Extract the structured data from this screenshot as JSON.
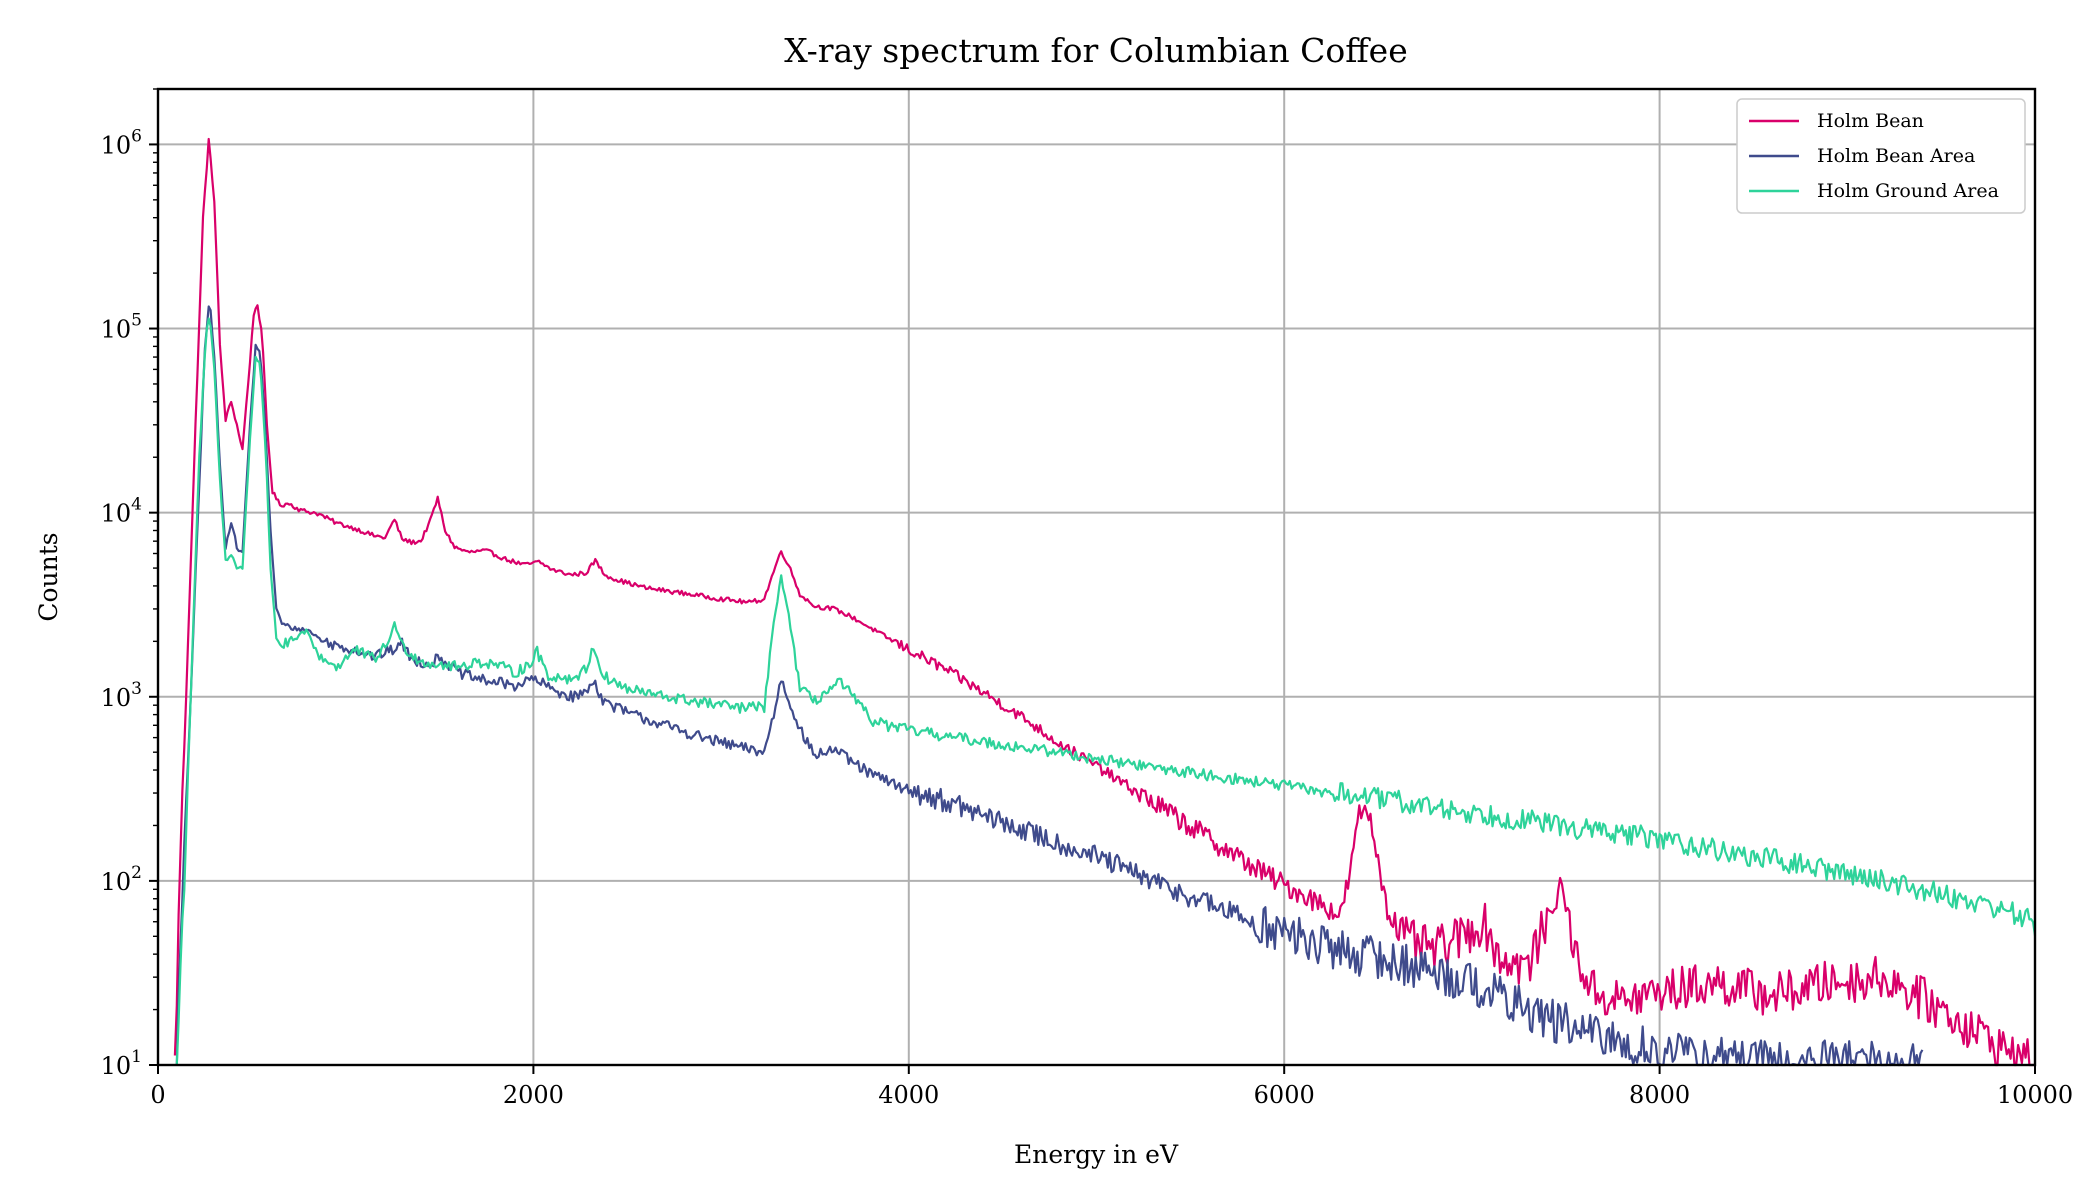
{
  "chart_data": {
    "type": "line",
    "title": "X-ray spectrum for Columbian Coffee",
    "xlabel": "Energy in eV",
    "ylabel": "Counts",
    "xlim": [
      0,
      10000
    ],
    "ylim": [
      10,
      2000000
    ],
    "yscale": "log",
    "grid": true,
    "legend_position": "top-right",
    "x_ticks": [
      0,
      2000,
      4000,
      6000,
      8000,
      10000
    ],
    "y_ticks": [
      {
        "value": 10,
        "base": "10",
        "exp": "1"
      },
      {
        "value": 100,
        "base": "10",
        "exp": "2"
      },
      {
        "value": 1000,
        "base": "10",
        "exp": "3"
      },
      {
        "value": 10000,
        "base": "10",
        "exp": "4"
      },
      {
        "value": 100000,
        "base": "10",
        "exp": "5"
      },
      {
        "value": 1000000,
        "base": "10",
        "exp": "6"
      }
    ],
    "series": [
      {
        "name": "Holm Bean",
        "color": "#d9006a",
        "points": [
          [
            90,
            10
          ],
          [
            120,
            150
          ],
          [
            160,
            2000
          ],
          [
            200,
            30000
          ],
          [
            240,
            400000
          ],
          [
            270,
            1050000
          ],
          [
            300,
            500000
          ],
          [
            330,
            80000
          ],
          [
            360,
            32000
          ],
          [
            390,
            40000
          ],
          [
            420,
            30000
          ],
          [
            450,
            22000
          ],
          [
            480,
            50000
          ],
          [
            510,
            120000
          ],
          [
            530,
            135000
          ],
          [
            555,
            90000
          ],
          [
            580,
            30000
          ],
          [
            610,
            13000
          ],
          [
            650,
            11000
          ],
          [
            700,
            11200
          ],
          [
            760,
            10300
          ],
          [
            850,
            9900
          ],
          [
            950,
            8800
          ],
          [
            1050,
            8200
          ],
          [
            1150,
            7500
          ],
          [
            1210,
            7300
          ],
          [
            1260,
            9200
          ],
          [
            1300,
            7200
          ],
          [
            1350,
            6900
          ],
          [
            1400,
            7000
          ],
          [
            1450,
            9000
          ],
          [
            1490,
            12000
          ],
          [
            1530,
            8000
          ],
          [
            1580,
            6500
          ],
          [
            1650,
            6100
          ],
          [
            1750,
            6200
          ],
          [
            1850,
            5600
          ],
          [
            1950,
            5200
          ],
          [
            2030,
            5400
          ],
          [
            2100,
            4900
          ],
          [
            2200,
            4600
          ],
          [
            2280,
            4700
          ],
          [
            2330,
            5500
          ],
          [
            2380,
            4600
          ],
          [
            2450,
            4300
          ],
          [
            2600,
            3900
          ],
          [
            2800,
            3650
          ],
          [
            3000,
            3400
          ],
          [
            3150,
            3250
          ],
          [
            3230,
            3400
          ],
          [
            3280,
            4800
          ],
          [
            3320,
            6200
          ],
          [
            3360,
            5200
          ],
          [
            3420,
            3600
          ],
          [
            3500,
            3100
          ],
          [
            3600,
            3000
          ],
          [
            3700,
            2700
          ],
          [
            3800,
            2350
          ],
          [
            3900,
            2050
          ],
          [
            4000,
            1800
          ],
          [
            4200,
            1400
          ],
          [
            4400,
            1050
          ],
          [
            4600,
            780
          ],
          [
            4800,
            560
          ],
          [
            5000,
            420
          ],
          [
            5200,
            310
          ],
          [
            5400,
            230
          ],
          [
            5600,
            170
          ],
          [
            5800,
            125
          ],
          [
            6000,
            95
          ],
          [
            6200,
            75
          ],
          [
            6300,
            65
          ],
          [
            6350,
            110
          ],
          [
            6400,
            230
          ],
          [
            6440,
            250
          ],
          [
            6480,
            170
          ],
          [
            6550,
            70
          ],
          [
            6650,
            48
          ],
          [
            6800,
            42
          ],
          [
            6950,
            50
          ],
          [
            7060,
            60
          ],
          [
            7150,
            38
          ],
          [
            7300,
            34
          ],
          [
            7420,
            70
          ],
          [
            7480,
            95
          ],
          [
            7550,
            40
          ],
          [
            7650,
            25
          ],
          [
            7800,
            22
          ],
          [
            8000,
            25
          ],
          [
            8300,
            28
          ],
          [
            8600,
            24
          ],
          [
            8900,
            28
          ],
          [
            9200,
            30
          ],
          [
            9500,
            20
          ],
          [
            9700,
            15
          ],
          [
            9850,
            12
          ],
          [
            10000,
            10
          ]
        ]
      },
      {
        "name": "Holm Bean Area",
        "color": "#3f4b8c",
        "points": [
          [
            100,
            10
          ],
          [
            130,
            80
          ],
          [
            170,
            800
          ],
          [
            210,
            8000
          ],
          [
            250,
            80000
          ],
          [
            275,
            145000
          ],
          [
            300,
            70000
          ],
          [
            330,
            18000
          ],
          [
            360,
            6500
          ],
          [
            390,
            9000
          ],
          [
            420,
            6500
          ],
          [
            450,
            6000
          ],
          [
            490,
            30000
          ],
          [
            520,
            80000
          ],
          [
            545,
            75000
          ],
          [
            570,
            30000
          ],
          [
            600,
            8000
          ],
          [
            630,
            3000
          ],
          [
            660,
            2500
          ],
          [
            720,
            2350
          ],
          [
            800,
            2300
          ],
          [
            880,
            2000
          ],
          [
            950,
            1900
          ],
          [
            1050,
            1800
          ],
          [
            1150,
            1650
          ],
          [
            1250,
            1800
          ],
          [
            1300,
            1950
          ],
          [
            1350,
            1600
          ],
          [
            1450,
            1500
          ],
          [
            1500,
            1650
          ],
          [
            1600,
            1350
          ],
          [
            1700,
            1250
          ],
          [
            1800,
            1200
          ],
          [
            1900,
            1150
          ],
          [
            2000,
            1250
          ],
          [
            2100,
            1100
          ],
          [
            2200,
            1000
          ],
          [
            2280,
            1050
          ],
          [
            2320,
            1250
          ],
          [
            2370,
            950
          ],
          [
            2500,
            820
          ],
          [
            2700,
            700
          ],
          [
            2900,
            600
          ],
          [
            3100,
            530
          ],
          [
            3230,
            500
          ],
          [
            3280,
            800
          ],
          [
            3320,
            1250
          ],
          [
            3370,
            900
          ],
          [
            3450,
            580
          ],
          [
            3500,
            480
          ],
          [
            3600,
            520
          ],
          [
            3700,
            440
          ],
          [
            3800,
            380
          ],
          [
            4000,
            310
          ],
          [
            4200,
            270
          ],
          [
            4400,
            225
          ],
          [
            4600,
            190
          ],
          [
            4800,
            160
          ],
          [
            5000,
            135
          ],
          [
            5200,
            110
          ],
          [
            5400,
            90
          ],
          [
            5600,
            75
          ],
          [
            5800,
            62
          ],
          [
            6000,
            52
          ],
          [
            6200,
            44
          ],
          [
            6400,
            40
          ],
          [
            6600,
            36
          ],
          [
            6800,
            32
          ],
          [
            7000,
            28
          ],
          [
            7200,
            22
          ],
          [
            7400,
            18
          ],
          [
            7600,
            15
          ],
          [
            7800,
            13
          ],
          [
            8000,
            12
          ],
          [
            8200,
            11
          ],
          [
            8400,
            11
          ],
          [
            8700,
            10
          ],
          [
            9000,
            11
          ],
          [
            9300,
            10
          ],
          [
            9400,
            10
          ]
        ]
      },
      {
        "name": "Holm Ground Area",
        "color": "#2ed39a",
        "points": [
          [
            100,
            10
          ],
          [
            140,
            100
          ],
          [
            180,
            1500
          ],
          [
            220,
            20000
          ],
          [
            255,
            90000
          ],
          [
            275,
            120000
          ],
          [
            300,
            60000
          ],
          [
            330,
            15000
          ],
          [
            360,
            5500
          ],
          [
            390,
            6000
          ],
          [
            420,
            5000
          ],
          [
            450,
            5000
          ],
          [
            490,
            25000
          ],
          [
            520,
            70000
          ],
          [
            545,
            65000
          ],
          [
            575,
            20000
          ],
          [
            600,
            5000
          ],
          [
            630,
            2100
          ],
          [
            660,
            1900
          ],
          [
            720,
            2000
          ],
          [
            790,
            2300
          ],
          [
            850,
            1700
          ],
          [
            950,
            1450
          ],
          [
            1050,
            1800
          ],
          [
            1150,
            1600
          ],
          [
            1220,
            1900
          ],
          [
            1260,
            2500
          ],
          [
            1300,
            1900
          ],
          [
            1400,
            1550
          ],
          [
            1500,
            1500
          ],
          [
            1600,
            1450
          ],
          [
            1700,
            1550
          ],
          [
            1800,
            1500
          ],
          [
            1900,
            1350
          ],
          [
            1980,
            1500
          ],
          [
            2020,
            1750
          ],
          [
            2080,
            1300
          ],
          [
            2200,
            1250
          ],
          [
            2280,
            1400
          ],
          [
            2320,
            1900
          ],
          [
            2370,
            1300
          ],
          [
            2500,
            1100
          ],
          [
            2700,
            1000
          ],
          [
            2900,
            930
          ],
          [
            3100,
            870
          ],
          [
            3230,
            880
          ],
          [
            3280,
            2500
          ],
          [
            3320,
            4500
          ],
          [
            3360,
            2800
          ],
          [
            3420,
            1100
          ],
          [
            3500,
            950
          ],
          [
            3580,
            1100
          ],
          [
            3640,
            1200
          ],
          [
            3700,
            1000
          ],
          [
            3800,
            750
          ],
          [
            3900,
            690
          ],
          [
            4000,
            660
          ],
          [
            4200,
            610
          ],
          [
            4400,
            570
          ],
          [
            4600,
            530
          ],
          [
            4800,
            500
          ],
          [
            5000,
            460
          ],
          [
            5200,
            430
          ],
          [
            5400,
            400
          ],
          [
            5600,
            375
          ],
          [
            5800,
            350
          ],
          [
            6000,
            330
          ],
          [
            6200,
            305
          ],
          [
            6400,
            290
          ],
          [
            6600,
            270
          ],
          [
            6800,
            250
          ],
          [
            7000,
            235
          ],
          [
            7200,
            220
          ],
          [
            7400,
            205
          ],
          [
            7600,
            190
          ],
          [
            7800,
            180
          ],
          [
            8000,
            170
          ],
          [
            8200,
            155
          ],
          [
            8400,
            140
          ],
          [
            8600,
            130
          ],
          [
            8800,
            120
          ],
          [
            9000,
            110
          ],
          [
            9200,
            100
          ],
          [
            9400,
            90
          ],
          [
            9600,
            80
          ],
          [
            9800,
            72
          ],
          [
            10000,
            60
          ]
        ]
      }
    ]
  }
}
